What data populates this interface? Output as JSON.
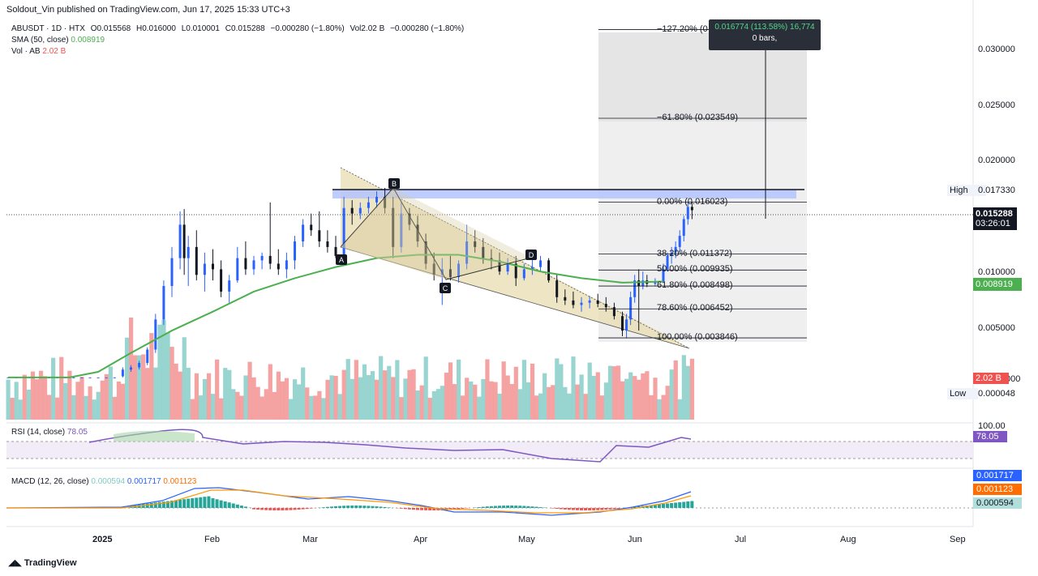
{
  "header": {
    "publish": "Soldout_Vin published on TradingView.com, Jun 17, 2025 15:33 UTC+3",
    "symbol": "ABUSDT · 1D · HTX",
    "open": "O0.015568",
    "high": "H0.016000",
    "low": "L0.010001",
    "close": "C0.015288",
    "change": "−0.000280 (−1.80%)",
    "vol": "Vol2.02 B",
    "vol_change": "−0.000280 (−1.80%)",
    "sma_label": "SMA (50, close)",
    "sma_value": "0.008919",
    "vol_label": "Vol · AB",
    "vol_value": "2.02 B"
  },
  "tooltip": {
    "line1": "0.016774 (113.58%) 16,774",
    "line2": "0 bars,"
  },
  "price_axis": {
    "ticks": [
      "0.030000",
      "0.025000",
      "0.020000",
      "0.010000",
      "0.005000"
    ],
    "high_label": "High",
    "high_value": "0.017330",
    "last_price": "0.015288",
    "countdown": "03:26:01",
    "sma_tag": "0.008919",
    "vol_tag": "2.02 B",
    "low_label": "Low",
    "low_value": "0.000048",
    "partial_tick": "000"
  },
  "fib_levels": [
    {
      "label": "−127.20% (0",
      "price": 0.0315
    },
    {
      "label": "−61.80% (0.023549)",
      "price": 0.023549
    },
    {
      "label": "0.00% (0.016023)",
      "price": 0.016023
    },
    {
      "label": "38.20% (0.011372)",
      "price": 0.011372
    },
    {
      "label": "50.00% (0.009935)",
      "price": 0.009935
    },
    {
      "label": "61.80% (0.008498)",
      "price": 0.008498
    },
    {
      "label": "78.60% (0.006452)",
      "price": 0.006452
    },
    {
      "label": "100.00% (0.003846)",
      "price": 0.003846
    }
  ],
  "pattern_points": [
    "A",
    "B",
    "C",
    "D"
  ],
  "rsi": {
    "label": "RSI (14, close)",
    "value": "78.05",
    "axis_top": "100.00",
    "tag": "78.05"
  },
  "macd": {
    "label": "MACD (12, 26, close)",
    "hist": "0.000594",
    "macd": "0.001717",
    "signal": "0.001123",
    "tag_macd": "0.001717",
    "tag_signal": "0.001123",
    "tag_hist": "0.000594"
  },
  "time_axis": [
    "2025",
    "Feb",
    "Mar",
    "Apr",
    "May",
    "Jun",
    "Jul",
    "Aug",
    "Sep"
  ],
  "footer": "TradingView",
  "colors": {
    "up": "#2962ff",
    "down": "#131722",
    "sma": "#4caf50",
    "vol_up": "#80cbc4",
    "vol_down": "#f28b8b",
    "rsi": "#7e57c2",
    "macd": "#2962ff",
    "signal": "#ff6d00",
    "resistance": "#90a4ff"
  },
  "chart_data": {
    "type": "candlestick",
    "title": "ABUSDT · 1D · HTX",
    "price_range": [
      0.0,
      0.033
    ],
    "resistance_level": 0.01733,
    "sma_points": [
      [
        0,
        0.0003
      ],
      [
        15,
        0.0003
      ],
      [
        22,
        0.0008
      ],
      [
        30,
        0.0025
      ],
      [
        40,
        0.0045
      ],
      [
        50,
        0.0062
      ],
      [
        60,
        0.008
      ],
      [
        70,
        0.0092
      ],
      [
        80,
        0.0102
      ],
      [
        90,
        0.011
      ],
      [
        100,
        0.0113
      ],
      [
        110,
        0.0113
      ],
      [
        120,
        0.0107
      ],
      [
        130,
        0.0098
      ],
      [
        140,
        0.0092
      ],
      [
        150,
        0.0088
      ],
      [
        160,
        0.0089
      ]
    ],
    "candles": [
      [
        0,
        0.0003,
        0.0003,
        0.0003,
        0.0003
      ],
      [
        2,
        0.0003,
        0.0003,
        0.0003,
        0.0003
      ],
      [
        4,
        0.0003,
        0.0003,
        0.0003,
        0.0003
      ],
      [
        6,
        0.0003,
        0.0003,
        0.0003,
        0.0003
      ],
      [
        8,
        0.0003,
        0.0003,
        0.0003,
        0.0003
      ],
      [
        10,
        0.0003,
        0.0003,
        0.0003,
        0.0003
      ],
      [
        12,
        0.0003,
        0.0003,
        0.0003,
        0.0003
      ],
      [
        14,
        0.0003,
        0.0003,
        0.0003,
        0.0003
      ],
      [
        16,
        0.0003,
        0.0003,
        0.0003,
        0.0003
      ],
      [
        18,
        0.0003,
        0.0003,
        0.0003,
        0.0003
      ],
      [
        20,
        0.0003,
        0.0003,
        0.0003,
        0.0003
      ],
      [
        22,
        0.0003,
        0.0003,
        0.0003,
        0.0003
      ],
      [
        24,
        0.0003,
        0.0003,
        0.0003,
        0.0003
      ],
      [
        26,
        0.0003,
        0.0003,
        0.0003,
        0.0003
      ],
      [
        28,
        0.0004,
        0.0012,
        0.0003,
        0.001
      ],
      [
        30,
        0.001,
        0.0014,
        0.0008,
        0.0012
      ],
      [
        32,
        0.0012,
        0.0018,
        0.001,
        0.0016
      ],
      [
        34,
        0.0016,
        0.003,
        0.0014,
        0.0028
      ],
      [
        36,
        0.0028,
        0.006,
        0.0025,
        0.0055
      ],
      [
        38,
        0.0055,
        0.009,
        0.005,
        0.0085
      ],
      [
        40,
        0.0085,
        0.012,
        0.0075,
        0.011
      ],
      [
        42,
        0.011,
        0.0152,
        0.01,
        0.014
      ],
      [
        43,
        0.014,
        0.0154,
        0.0095,
        0.011
      ],
      [
        44,
        0.011,
        0.013,
        0.0085,
        0.012
      ],
      [
        46,
        0.012,
        0.0135,
        0.009,
        0.0095
      ],
      [
        48,
        0.0095,
        0.0115,
        0.008,
        0.0105
      ],
      [
        50,
        0.0105,
        0.0118,
        0.009,
        0.01
      ],
      [
        52,
        0.01,
        0.0108,
        0.0075,
        0.008
      ],
      [
        54,
        0.008,
        0.0095,
        0.007,
        0.009
      ],
      [
        56,
        0.009,
        0.012,
        0.0088,
        0.011
      ],
      [
        58,
        0.011,
        0.0125,
        0.0095,
        0.01
      ],
      [
        60,
        0.01,
        0.0112,
        0.0095,
        0.0108
      ],
      [
        62,
        0.0108,
        0.0115,
        0.01,
        0.0112
      ],
      [
        64,
        0.0112,
        0.016,
        0.01,
        0.0105
      ],
      [
        66,
        0.0105,
        0.0118,
        0.0095,
        0.01
      ],
      [
        68,
        0.01,
        0.0115,
        0.0092,
        0.0108
      ],
      [
        70,
        0.0108,
        0.013,
        0.01,
        0.0125
      ],
      [
        72,
        0.0125,
        0.0145,
        0.012,
        0.014
      ],
      [
        74,
        0.014,
        0.015,
        0.013,
        0.0135
      ],
      [
        76,
        0.0135,
        0.0152,
        0.012,
        0.0125
      ],
      [
        78,
        0.0125,
        0.0135,
        0.0115,
        0.012
      ],
      [
        80,
        0.012,
        0.013,
        0.011,
        0.0112
      ],
      [
        82,
        0.0112,
        0.0165,
        0.011,
        0.0155
      ],
      [
        84,
        0.0155,
        0.0162,
        0.014,
        0.015
      ],
      [
        86,
        0.015,
        0.016,
        0.0145,
        0.0155
      ],
      [
        88,
        0.0155,
        0.0165,
        0.015,
        0.016
      ],
      [
        90,
        0.016,
        0.017,
        0.0155,
        0.0165
      ],
      [
        92,
        0.0165,
        0.0173,
        0.015,
        0.0155
      ],
      [
        94,
        0.0155,
        0.0165,
        0.011,
        0.012
      ],
      [
        96,
        0.012,
        0.016,
        0.0115,
        0.015
      ],
      [
        98,
        0.015,
        0.0155,
        0.0135,
        0.014
      ],
      [
        100,
        0.014,
        0.0148,
        0.012,
        0.0125
      ],
      [
        102,
        0.0125,
        0.0132,
        0.01,
        0.0105
      ],
      [
        104,
        0.0105,
        0.0115,
        0.009,
        0.0095
      ],
      [
        106,
        0.0095,
        0.011,
        0.0068,
        0.01
      ],
      [
        108,
        0.01,
        0.0112,
        0.009,
        0.0093
      ],
      [
        110,
        0.0093,
        0.0108,
        0.0088,
        0.0105
      ],
      [
        112,
        0.0105,
        0.014,
        0.01,
        0.0125
      ],
      [
        114,
        0.0125,
        0.0135,
        0.0115,
        0.012
      ],
      [
        116,
        0.012,
        0.0128,
        0.0105,
        0.011
      ],
      [
        118,
        0.011,
        0.0118,
        0.01,
        0.0108
      ],
      [
        120,
        0.0108,
        0.0115,
        0.0095,
        0.0098
      ],
      [
        122,
        0.0098,
        0.011,
        0.0095,
        0.0105
      ],
      [
        124,
        0.0105,
        0.0112,
        0.0085,
        0.0092
      ],
      [
        126,
        0.0092,
        0.0105,
        0.009,
        0.01
      ],
      [
        128,
        0.01,
        0.011,
        0.0095,
        0.0102
      ],
      [
        130,
        0.0102,
        0.0112,
        0.0098,
        0.0108
      ],
      [
        132,
        0.0108,
        0.011,
        0.0088,
        0.009
      ],
      [
        134,
        0.009,
        0.0095,
        0.007,
        0.0075
      ],
      [
        136,
        0.0075,
        0.0082,
        0.0068,
        0.0072
      ],
      [
        138,
        0.0072,
        0.008,
        0.0065,
        0.0068
      ],
      [
        140,
        0.0068,
        0.0075,
        0.0062,
        0.007
      ],
      [
        142,
        0.007,
        0.0076,
        0.0065,
        0.0072
      ],
      [
        144,
        0.0072,
        0.0078,
        0.0066,
        0.0069
      ],
      [
        146,
        0.0069,
        0.0075,
        0.0062,
        0.0066
      ],
      [
        148,
        0.0066,
        0.007,
        0.0055,
        0.0058
      ],
      [
        150,
        0.0058,
        0.0062,
        0.004,
        0.0045
      ],
      [
        151,
        0.0045,
        0.006,
        0.0038,
        0.0055
      ],
      [
        152,
        0.0055,
        0.008,
        0.005,
        0.0075
      ],
      [
        153,
        0.0075,
        0.0095,
        0.007,
        0.009
      ],
      [
        154,
        0.009,
        0.01,
        0.0045,
        0.0085
      ],
      [
        155,
        0.0085,
        0.0098,
        0.0082,
        0.009
      ],
      [
        156,
        0.009,
        0.0095,
        0.0084,
        0.0087
      ],
      [
        158,
        0.0087,
        0.0092,
        0.0085,
        0.0089
      ],
      [
        160,
        0.0089,
        0.0105,
        0.0088,
        0.01
      ],
      [
        161,
        0.01,
        0.0115,
        0.0098,
        0.0112
      ],
      [
        162,
        0.0112,
        0.012,
        0.0105,
        0.0115
      ],
      [
        163,
        0.0115,
        0.0125,
        0.011,
        0.012
      ],
      [
        164,
        0.012,
        0.0135,
        0.0115,
        0.013
      ],
      [
        165,
        0.013,
        0.0148,
        0.0125,
        0.0145
      ],
      [
        166,
        0.0145,
        0.016,
        0.014,
        0.0156
      ],
      [
        167,
        0.0156,
        0.016,
        0.0145,
        0.0153
      ]
    ]
  }
}
